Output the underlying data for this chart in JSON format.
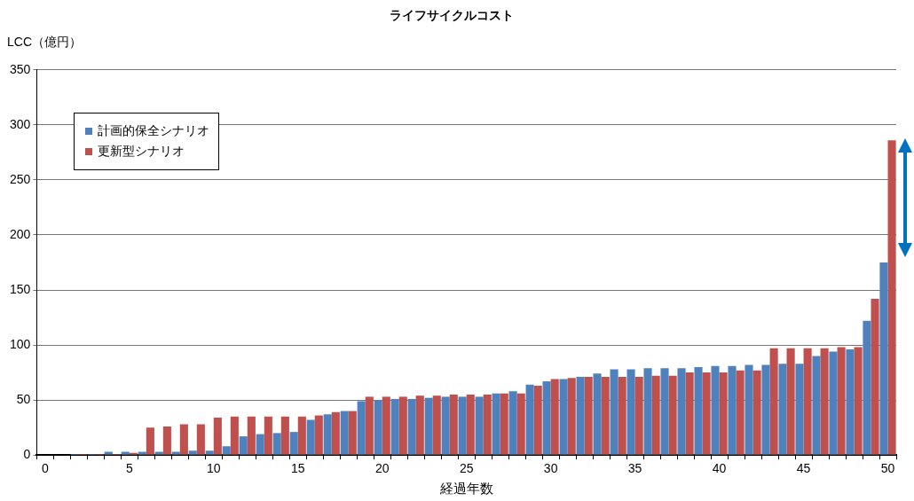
{
  "chart_data": {
    "type": "bar",
    "title": "ライフサイクルコスト",
    "ylabel": "LCC（億円）",
    "xlabel": "経過年数",
    "categories": [
      "0",
      null,
      null,
      null,
      null,
      "5",
      null,
      null,
      null,
      null,
      "10",
      null,
      null,
      null,
      null,
      "15",
      null,
      null,
      null,
      null,
      "20",
      null,
      null,
      null,
      null,
      "25",
      null,
      null,
      null,
      null,
      "30",
      null,
      null,
      null,
      null,
      "35",
      null,
      null,
      null,
      null,
      "40",
      null,
      null,
      null,
      null,
      "45",
      null,
      null,
      null,
      null,
      "50"
    ],
    "series": [
      {
        "name": "計画的保全シナリオ",
        "color": "#4f81bd",
        "values": [
          0,
          0,
          1,
          1,
          3,
          3,
          3,
          3,
          3,
          4,
          4,
          8,
          17,
          19,
          20,
          21,
          32,
          37,
          40,
          49,
          50,
          51,
          51,
          52,
          53,
          53,
          53,
          56,
          58,
          64,
          67,
          69,
          71,
          74,
          78,
          78,
          79,
          79,
          79,
          80,
          81,
          81,
          82,
          82,
          83,
          83,
          90,
          94,
          96,
          122,
          175
        ]
      },
      {
        "name": "更新型シナリオ",
        "color": "#c0504d",
        "values": [
          0,
          0,
          1,
          1,
          1,
          2,
          25,
          26,
          28,
          28,
          34,
          35,
          35,
          35,
          35,
          35,
          36,
          39,
          40,
          53,
          53,
          53,
          54,
          54,
          55,
          55,
          55,
          56,
          56,
          63,
          69,
          70,
          71,
          71,
          71,
          71,
          72,
          72,
          75,
          75,
          75,
          77,
          77,
          97,
          97,
          97,
          97,
          98,
          98,
          142,
          286
        ]
      }
    ],
    "ylim": [
      0,
      350
    ],
    "yticks": [
      0,
      50,
      100,
      150,
      200,
      250,
      300,
      350
    ],
    "grid": "y",
    "legend": "top left"
  }
}
